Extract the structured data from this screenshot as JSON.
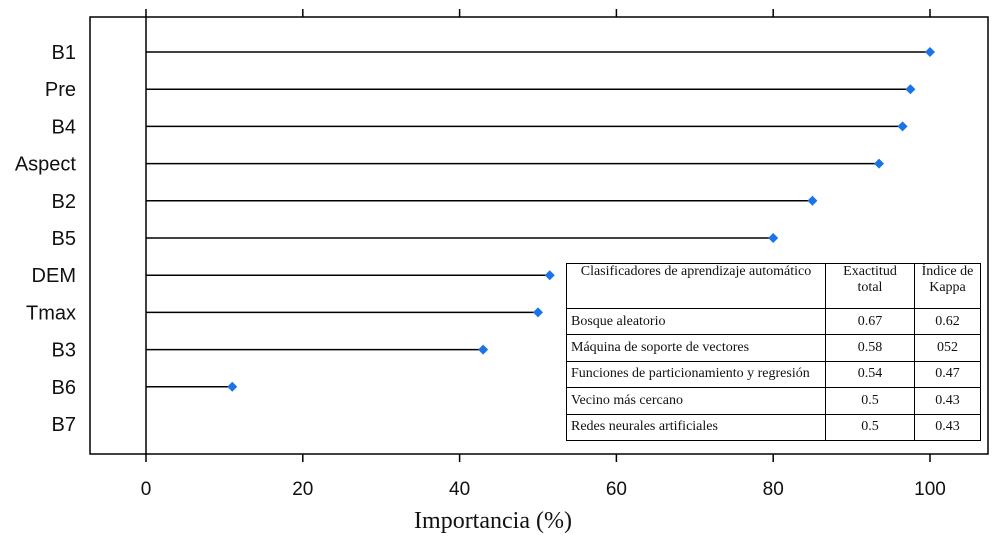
{
  "chart_data": {
    "type": "dot",
    "categories": [
      "B1",
      "Pre",
      "B4",
      "Aspect",
      "B2",
      "B5",
      "DEM",
      "Tmax",
      "B3",
      "B6",
      "B7"
    ],
    "values": [
      100,
      97.5,
      96.5,
      93.5,
      85,
      80,
      51.5,
      50,
      43,
      11,
      0
    ],
    "xlabel": "Importancia (%)",
    "xticks": [
      0,
      20,
      40,
      60,
      80,
      100
    ],
    "xlim": [
      -7,
      106
    ],
    "grid": false,
    "marker_color": "#1a73e8",
    "line_color": "#000000"
  },
  "table": {
    "headers": [
      "Clasificadores de aprendizaje automático",
      "Exactitud total",
      "Índice de Kappa"
    ],
    "rows": [
      [
        "Bosque aleatorio",
        "0.67",
        "0.62"
      ],
      [
        "Máquina de soporte de vectores",
        "0.58",
        "052"
      ],
      [
        "Funciones de particionamiento y regresión",
        "0.54",
        "0.47"
      ],
      [
        "Vecino más cercano",
        "0.5",
        "0.43"
      ],
      [
        "Redes neurales artificiales",
        "0.5",
        "0.43"
      ]
    ]
  }
}
